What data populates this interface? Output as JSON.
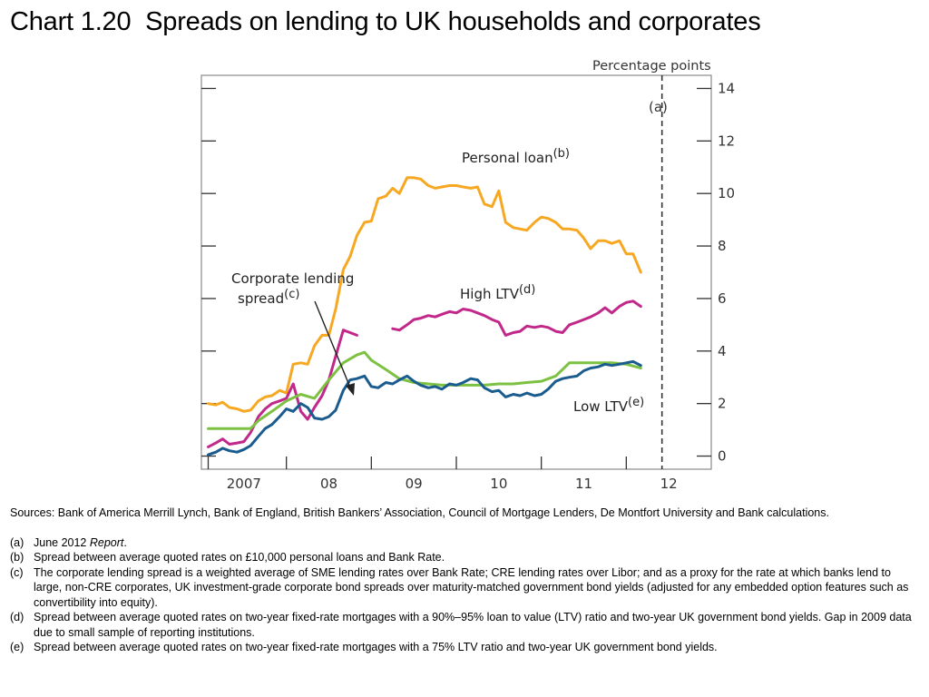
{
  "page": {
    "title": "Chart 1.20  Spreads on lending to UK households and corporates"
  },
  "chart_data": {
    "type": "line",
    "unit_label": "Percentage points",
    "x_axis": {
      "range": [
        2006.5,
        2012.5
      ],
      "tick_labels": [
        {
          "label": "2007",
          "x": 2007.0
        },
        {
          "label": "08",
          "x": 2008.0
        },
        {
          "label": "09",
          "x": 2009.0
        },
        {
          "label": "10",
          "x": 2010.0
        },
        {
          "label": "11",
          "x": 2011.0
        },
        {
          "label": "12",
          "x": 2012.0
        }
      ],
      "tick_separators": [
        2007.5,
        2008.5,
        2009.5,
        2010.5,
        2011.5
      ]
    },
    "y_axis": {
      "range": [
        -0.5,
        14.5
      ],
      "ticks": [
        0,
        2,
        4,
        6,
        8,
        10,
        12,
        14
      ],
      "position": "right"
    },
    "grid": false,
    "vline": {
      "x": 2011.92,
      "label": "(a)",
      "style": "dashed"
    },
    "series": [
      {
        "name": "Personal loan",
        "sup": "(b)",
        "color": "#f7a823",
        "points": [
          [
            2006.58,
            2.0
          ],
          [
            2006.67,
            1.95
          ],
          [
            2006.75,
            2.05
          ],
          [
            2006.83,
            1.85
          ],
          [
            2006.92,
            1.8
          ],
          [
            2007.0,
            1.7
          ],
          [
            2007.08,
            1.75
          ],
          [
            2007.17,
            2.1
          ],
          [
            2007.25,
            2.25
          ],
          [
            2007.33,
            2.3
          ],
          [
            2007.42,
            2.5
          ],
          [
            2007.5,
            2.4
          ],
          [
            2007.58,
            3.5
          ],
          [
            2007.67,
            3.55
          ],
          [
            2007.75,
            3.5
          ],
          [
            2007.83,
            4.2
          ],
          [
            2007.92,
            4.6
          ],
          [
            2008.0,
            4.6
          ],
          [
            2008.08,
            5.6
          ],
          [
            2008.17,
            7.1
          ],
          [
            2008.25,
            7.6
          ],
          [
            2008.33,
            8.4
          ],
          [
            2008.42,
            8.9
          ],
          [
            2008.5,
            8.95
          ],
          [
            2008.58,
            9.8
          ],
          [
            2008.67,
            9.9
          ],
          [
            2008.75,
            10.2
          ],
          [
            2008.83,
            10.0
          ],
          [
            2008.92,
            10.6
          ],
          [
            2009.0,
            10.6
          ],
          [
            2009.08,
            10.55
          ],
          [
            2009.17,
            10.3
          ],
          [
            2009.25,
            10.2
          ],
          [
            2009.33,
            10.25
          ],
          [
            2009.42,
            10.3
          ],
          [
            2009.5,
            10.3
          ],
          [
            2009.58,
            10.25
          ],
          [
            2009.67,
            10.2
          ],
          [
            2009.75,
            10.25
          ],
          [
            2009.83,
            9.6
          ],
          [
            2009.92,
            9.5
          ],
          [
            2010.0,
            10.1
          ],
          [
            2010.08,
            8.9
          ],
          [
            2010.17,
            8.7
          ],
          [
            2010.25,
            8.65
          ],
          [
            2010.33,
            8.6
          ],
          [
            2010.42,
            8.9
          ],
          [
            2010.5,
            9.1
          ],
          [
            2010.58,
            9.05
          ],
          [
            2010.67,
            8.9
          ],
          [
            2010.75,
            8.65
          ],
          [
            2010.83,
            8.65
          ],
          [
            2010.92,
            8.6
          ],
          [
            2011.0,
            8.3
          ],
          [
            2011.08,
            7.9
          ],
          [
            2011.17,
            8.2
          ],
          [
            2011.25,
            8.2
          ],
          [
            2011.33,
            8.1
          ],
          [
            2011.42,
            8.2
          ],
          [
            2011.5,
            7.7
          ],
          [
            2011.58,
            7.7
          ],
          [
            2011.67,
            7.0
          ]
        ]
      },
      {
        "name": "High LTV",
        "sup": "(d)",
        "color": "#c2278a",
        "points": [
          [
            2006.58,
            0.35
          ],
          [
            2006.67,
            0.5
          ],
          [
            2006.75,
            0.65
          ],
          [
            2006.83,
            0.45
          ],
          [
            2006.92,
            0.5
          ],
          [
            2007.0,
            0.55
          ],
          [
            2007.08,
            0.9
          ],
          [
            2007.17,
            1.5
          ],
          [
            2007.25,
            1.8
          ],
          [
            2007.33,
            2.0
          ],
          [
            2007.42,
            2.1
          ],
          [
            2007.5,
            2.2
          ],
          [
            2007.58,
            2.75
          ],
          [
            2007.67,
            1.7
          ],
          [
            2007.75,
            1.4
          ],
          [
            2007.83,
            1.85
          ],
          [
            2007.92,
            2.3
          ],
          [
            2008.0,
            2.9
          ],
          [
            2008.08,
            3.8
          ],
          [
            2008.17,
            4.8
          ],
          [
            2008.25,
            4.7
          ],
          [
            2008.33,
            4.6
          ]
        ],
        "points_after_gap": [
          [
            2008.75,
            4.85
          ],
          [
            2008.83,
            4.8
          ],
          [
            2008.92,
            5.0
          ],
          [
            2009.0,
            5.2
          ],
          [
            2009.08,
            5.25
          ],
          [
            2009.17,
            5.35
          ],
          [
            2009.25,
            5.3
          ],
          [
            2009.33,
            5.4
          ],
          [
            2009.42,
            5.5
          ],
          [
            2009.5,
            5.45
          ],
          [
            2009.58,
            5.6
          ],
          [
            2009.67,
            5.55
          ],
          [
            2009.75,
            5.45
          ],
          [
            2009.83,
            5.35
          ],
          [
            2009.92,
            5.2
          ],
          [
            2010.0,
            5.1
          ],
          [
            2010.08,
            4.6
          ],
          [
            2010.17,
            4.7
          ],
          [
            2010.25,
            4.75
          ],
          [
            2010.33,
            4.95
          ],
          [
            2010.42,
            4.9
          ],
          [
            2010.5,
            4.95
          ],
          [
            2010.58,
            4.9
          ],
          [
            2010.67,
            4.75
          ],
          [
            2010.75,
            4.7
          ],
          [
            2010.83,
            5.0
          ],
          [
            2010.92,
            5.1
          ],
          [
            2011.0,
            5.2
          ],
          [
            2011.08,
            5.3
          ],
          [
            2011.17,
            5.45
          ],
          [
            2011.25,
            5.65
          ],
          [
            2011.33,
            5.45
          ],
          [
            2011.42,
            5.7
          ],
          [
            2011.5,
            5.85
          ],
          [
            2011.58,
            5.9
          ],
          [
            2011.67,
            5.7
          ]
        ]
      },
      {
        "name": "Corporate lending spread",
        "sup": "(c)",
        "color": "#7dc142",
        "points": [
          [
            2006.58,
            1.05
          ],
          [
            2006.75,
            1.05
          ],
          [
            2006.92,
            1.05
          ],
          [
            2007.08,
            1.05
          ],
          [
            2007.17,
            1.35
          ],
          [
            2007.33,
            1.7
          ],
          [
            2007.5,
            2.1
          ],
          [
            2007.67,
            2.35
          ],
          [
            2007.83,
            2.2
          ],
          [
            2008.0,
            2.9
          ],
          [
            2008.17,
            3.55
          ],
          [
            2008.33,
            3.85
          ],
          [
            2008.42,
            3.95
          ],
          [
            2008.5,
            3.65
          ],
          [
            2008.67,
            3.3
          ],
          [
            2008.83,
            2.95
          ],
          [
            2009.0,
            2.8
          ],
          [
            2009.17,
            2.75
          ],
          [
            2009.33,
            2.7
          ],
          [
            2009.5,
            2.7
          ],
          [
            2009.67,
            2.7
          ],
          [
            2009.83,
            2.7
          ],
          [
            2010.0,
            2.75
          ],
          [
            2010.17,
            2.75
          ],
          [
            2010.33,
            2.8
          ],
          [
            2010.5,
            2.85
          ],
          [
            2010.67,
            3.05
          ],
          [
            2010.83,
            3.55
          ],
          [
            2011.0,
            3.55
          ],
          [
            2011.17,
            3.55
          ],
          [
            2011.33,
            3.55
          ],
          [
            2011.5,
            3.5
          ],
          [
            2011.67,
            3.35
          ]
        ]
      },
      {
        "name": "Low LTV",
        "sup": "(e)",
        "color": "#1b5c8f",
        "points": [
          [
            2006.58,
            0.05
          ],
          [
            2006.67,
            0.15
          ],
          [
            2006.75,
            0.3
          ],
          [
            2006.83,
            0.2
          ],
          [
            2006.92,
            0.15
          ],
          [
            2007.0,
            0.25
          ],
          [
            2007.08,
            0.4
          ],
          [
            2007.17,
            0.75
          ],
          [
            2007.25,
            1.05
          ],
          [
            2007.33,
            1.2
          ],
          [
            2007.42,
            1.5
          ],
          [
            2007.5,
            1.8
          ],
          [
            2007.58,
            1.7
          ],
          [
            2007.67,
            2.0
          ],
          [
            2007.75,
            1.85
          ],
          [
            2007.83,
            1.45
          ],
          [
            2007.92,
            1.4
          ],
          [
            2008.0,
            1.5
          ],
          [
            2008.08,
            1.75
          ],
          [
            2008.17,
            2.5
          ],
          [
            2008.25,
            2.9
          ],
          [
            2008.33,
            2.95
          ],
          [
            2008.42,
            3.05
          ],
          [
            2008.5,
            2.65
          ],
          [
            2008.58,
            2.6
          ],
          [
            2008.67,
            2.8
          ],
          [
            2008.75,
            2.75
          ],
          [
            2008.83,
            2.9
          ],
          [
            2008.92,
            3.05
          ],
          [
            2009.0,
            2.85
          ],
          [
            2009.08,
            2.7
          ],
          [
            2009.17,
            2.6
          ],
          [
            2009.25,
            2.65
          ],
          [
            2009.33,
            2.55
          ],
          [
            2009.42,
            2.75
          ],
          [
            2009.5,
            2.7
          ],
          [
            2009.58,
            2.8
          ],
          [
            2009.67,
            2.95
          ],
          [
            2009.75,
            2.9
          ],
          [
            2009.83,
            2.6
          ],
          [
            2009.92,
            2.45
          ],
          [
            2010.0,
            2.5
          ],
          [
            2010.08,
            2.25
          ],
          [
            2010.17,
            2.35
          ],
          [
            2010.25,
            2.3
          ],
          [
            2010.33,
            2.4
          ],
          [
            2010.42,
            2.3
          ],
          [
            2010.5,
            2.35
          ],
          [
            2010.58,
            2.55
          ],
          [
            2010.67,
            2.85
          ],
          [
            2010.75,
            2.95
          ],
          [
            2010.83,
            3.0
          ],
          [
            2010.92,
            3.05
          ],
          [
            2011.0,
            3.25
          ],
          [
            2011.08,
            3.35
          ],
          [
            2011.17,
            3.4
          ],
          [
            2011.25,
            3.5
          ],
          [
            2011.33,
            3.45
          ],
          [
            2011.42,
            3.5
          ],
          [
            2011.5,
            3.55
          ],
          [
            2011.58,
            3.6
          ],
          [
            2011.67,
            3.45
          ]
        ]
      }
    ],
    "annotations": [
      {
        "id": "personal",
        "label": "Personal loan",
        "sup": "(b)"
      },
      {
        "id": "highltv",
        "label": "High LTV",
        "sup": "(d)"
      },
      {
        "id": "lowltv",
        "label": "Low LTV",
        "sup": "(e)"
      },
      {
        "id": "corporate",
        "label_line1": "Corporate lending",
        "label_line2": "spread",
        "sup": "(c)"
      }
    ]
  },
  "notes": {
    "sources": "Sources:  Bank of America Merrill Lynch, Bank of England, British Bankers’ Association, Council of Mortgage Lenders, De Montfort University and Bank calculations.",
    "footnotes": [
      {
        "label": "(a)",
        "text": "June 2012 ",
        "italic": "Report",
        "tail": "."
      },
      {
        "label": "(b)",
        "text": "Spread between average quoted rates on £10,000 personal loans and Bank Rate."
      },
      {
        "label": "(c)",
        "text": "The corporate lending spread is a weighted average of SME lending rates over Bank Rate;  CRE lending rates over Libor;  and as a proxy for the rate at which banks lend to large, non-CRE corporates, UK investment-grade corporate bond spreads over maturity-matched government bond yields (adjusted for any embedded option features such as convertibility into equity)."
      },
      {
        "label": "(d)",
        "text": "Spread between average quoted rates on two-year fixed-rate mortgages with a 90%–95% loan to value (LTV) ratio and two-year UK government bond yields.  Gap in 2009 data due to small sample of reporting institutions."
      },
      {
        "label": "(e)",
        "text": "Spread between average quoted rates on two-year fixed-rate mortgages with a 75% LTV ratio and two-year UK government bond yields."
      }
    ]
  }
}
